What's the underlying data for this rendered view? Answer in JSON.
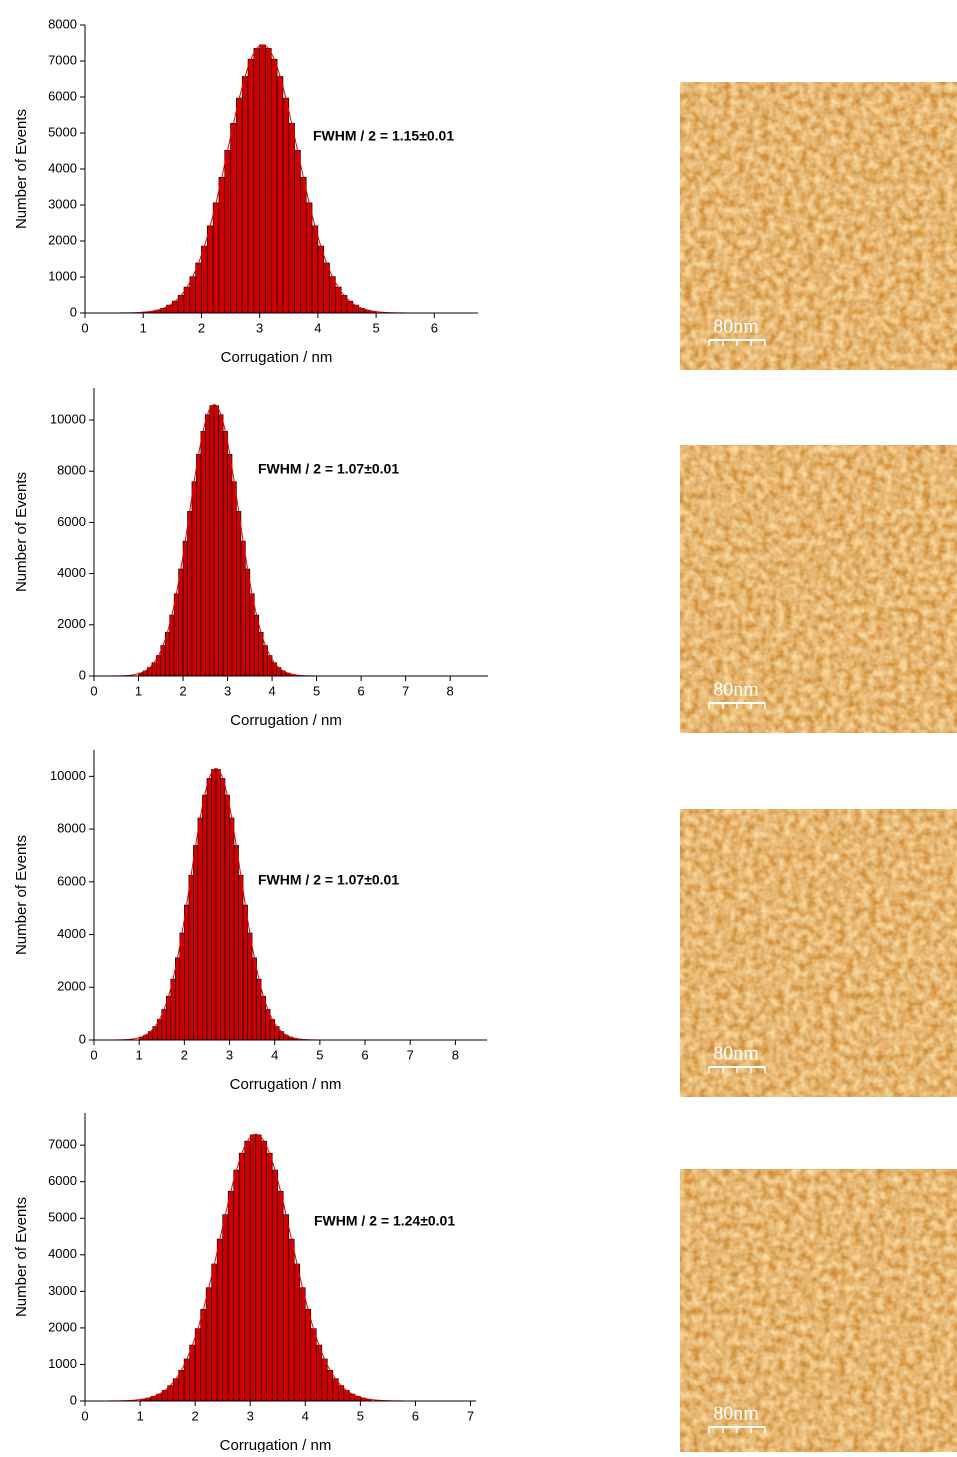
{
  "chart_data": [
    {
      "type": "histogram",
      "x_label": "Corrugation / nm",
      "y_label": "Number of Events",
      "annotation": "FWHM / 2 = 1.15±0.01",
      "color": "#cc0000",
      "fit_color": "#ee0000",
      "bins": [
        1.0,
        1.1,
        1.2,
        1.3,
        1.4,
        1.5,
        1.6,
        1.7,
        1.8,
        1.9,
        2.0,
        2.1,
        2.2,
        2.3,
        2.4,
        2.5,
        2.6,
        2.7,
        2.8,
        2.9,
        3.0,
        3.1,
        3.2,
        3.3,
        3.4,
        3.5,
        3.6,
        3.7,
        3.8,
        3.9,
        4.0,
        4.1,
        4.2,
        4.3,
        4.4,
        4.5,
        4.6,
        4.7,
        4.8,
        4.9,
        5.0
      ],
      "values": [
        30,
        50,
        80,
        130,
        220,
        330,
        490,
        720,
        1010,
        1390,
        1860,
        2420,
        3060,
        3770,
        4520,
        5270,
        5970,
        6570,
        7050,
        7350,
        7450,
        7350,
        7050,
        6570,
        5970,
        5270,
        4520,
        3770,
        3060,
        2420,
        1860,
        1390,
        1010,
        720,
        490,
        330,
        220,
        130,
        80,
        50
      ],
      "fit": {
        "peak": 7450,
        "mean": 3.05,
        "sigma": 0.6
      },
      "xlim": [
        0,
        6.75
      ],
      "xticks": [
        0,
        1,
        2,
        3,
        4,
        5,
        6
      ],
      "ylim": [
        0,
        8000
      ],
      "yticks": [
        0,
        1000,
        2000,
        3000,
        4000,
        5000,
        6000,
        7000,
        8000
      ]
    },
    {
      "type": "histogram",
      "x_label": "Corrugation / nm",
      "y_label": "Number of Events",
      "annotation": "FWHM / 2 = 1.07±0.01",
      "color": "#cc0000",
      "fit_color": "#ee0000",
      "bins": [
        1.0,
        1.1,
        1.2,
        1.3,
        1.4,
        1.5,
        1.6,
        1.7,
        1.8,
        1.9,
        2.0,
        2.1,
        2.2,
        2.3,
        2.4,
        2.5,
        2.6,
        2.7,
        2.8,
        2.9,
        3.0,
        3.1,
        3.2,
        3.3,
        3.4,
        3.5,
        3.6,
        3.7,
        3.8,
        3.9,
        4.0,
        4.1,
        4.2,
        4.3,
        4.4,
        4.5
      ],
      "values": [
        117,
        200,
        330,
        520,
        800,
        1190,
        1710,
        2380,
        3210,
        4180,
        5270,
        6430,
        7590,
        8660,
        9560,
        10210,
        10560,
        10560,
        10210,
        9560,
        8660,
        7590,
        6430,
        5270,
        4180,
        3210,
        2380,
        1710,
        1190,
        800,
        520,
        330,
        200,
        117,
        67
      ],
      "fit": {
        "peak": 10600,
        "mean": 2.7,
        "sigma": 0.55
      },
      "xlim": [
        0,
        8.85
      ],
      "xticks": [
        0,
        1,
        2,
        3,
        4,
        5,
        6,
        7,
        8
      ],
      "ylim": [
        0,
        11250
      ],
      "yticks": [
        0,
        2000,
        4000,
        6000,
        8000,
        10000
      ]
    },
    {
      "type": "histogram",
      "x_label": "Corrugation / nm",
      "y_label": "Number of Events",
      "annotation": "FWHM / 2 = 1.07±0.01",
      "color": "#cc0000",
      "fit_color": "#ee0000",
      "bins": [
        1.0,
        1.1,
        1.2,
        1.3,
        1.4,
        1.5,
        1.6,
        1.7,
        1.8,
        1.9,
        2.0,
        2.1,
        2.2,
        2.3,
        2.4,
        2.5,
        2.6,
        2.7,
        2.8,
        2.9,
        3.0,
        3.1,
        3.2,
        3.3,
        3.4,
        3.5,
        3.6,
        3.7,
        3.8,
        3.9,
        4.0,
        4.1,
        4.2,
        4.3,
        4.4,
        4.5
      ],
      "values": [
        110,
        190,
        320,
        510,
        780,
        1160,
        1660,
        2310,
        3120,
        4060,
        5120,
        6250,
        7380,
        8420,
        9290,
        9920,
        10260,
        10260,
        9920,
        9290,
        8420,
        7380,
        6250,
        5120,
        4060,
        3120,
        2310,
        1660,
        1160,
        780,
        510,
        320,
        190,
        110,
        65
      ],
      "fit": {
        "peak": 10300,
        "mean": 2.7,
        "sigma": 0.55
      },
      "xlim": [
        0,
        8.7
      ],
      "xticks": [
        0,
        1,
        2,
        3,
        4,
        5,
        6,
        7,
        8
      ],
      "ylim": [
        0,
        11000
      ],
      "yticks": [
        0,
        2000,
        4000,
        6000,
        8000,
        10000
      ]
    },
    {
      "type": "histogram",
      "x_label": "Corrugation / nm",
      "y_label": "Number of Events",
      "annotation": "FWHM / 2 = 1.24±0.01",
      "color": "#cc0000",
      "fit_color": "#ee0000",
      "bins": [
        1.0,
        1.1,
        1.2,
        1.3,
        1.4,
        1.5,
        1.6,
        1.7,
        1.8,
        1.9,
        2.0,
        2.1,
        2.2,
        2.3,
        2.4,
        2.5,
        2.6,
        2.7,
        2.8,
        2.9,
        3.0,
        3.1,
        3.2,
        3.3,
        3.4,
        3.5,
        3.6,
        3.7,
        3.8,
        3.9,
        4.0,
        4.1,
        4.2,
        4.3,
        4.4,
        4.5,
        4.6,
        4.7,
        4.8,
        4.9,
        5.0,
        5.1,
        5.2
      ],
      "values": [
        50,
        80,
        130,
        190,
        290,
        420,
        610,
        840,
        1150,
        1530,
        1980,
        2510,
        3100,
        3750,
        4430,
        5100,
        5740,
        6320,
        6780,
        7110,
        7280,
        7280,
        7110,
        6780,
        6320,
        5740,
        5100,
        4430,
        3750,
        3100,
        2510,
        1980,
        1530,
        1150,
        840,
        610,
        420,
        290,
        190,
        130,
        80,
        50
      ],
      "fit": {
        "peak": 7300,
        "mean": 3.1,
        "sigma": 0.65
      },
      "xlim": [
        0,
        7.1
      ],
      "xticks": [
        0,
        1,
        2,
        3,
        4,
        5,
        6,
        7
      ],
      "ylim": [
        0,
        7880
      ],
      "yticks": [
        0,
        1000,
        2000,
        3000,
        4000,
        5000,
        6000,
        7000
      ]
    }
  ],
  "images": [
    {
      "scale_label": "80nm"
    },
    {
      "scale_label": "80nm"
    },
    {
      "scale_label": "80nm"
    },
    {
      "scale_label": "80nm"
    }
  ]
}
